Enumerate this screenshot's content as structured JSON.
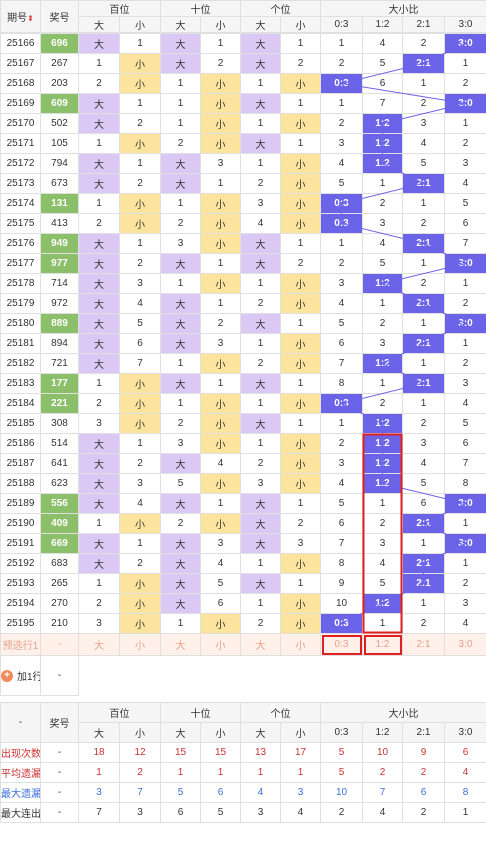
{
  "headers": {
    "period": "期号",
    "prize": "奖号",
    "hundreds": "百位",
    "tens": "十位",
    "units": "个位",
    "ratio": "大小比",
    "da": "大",
    "xiao": "小",
    "ratios": [
      "0:3",
      "1:2",
      "2:1",
      "3:0"
    ]
  },
  "rows": [
    {
      "p": "25166",
      "n": "696",
      "hl": true,
      "h": "大",
      "t": "大",
      "u": "大",
      "hv": "1",
      "tv": "1",
      "uv": "1",
      "r": [
        1,
        4,
        2,
        "3:0"
      ],
      "ri": 3
    },
    {
      "p": "25167",
      "n": "267",
      "hl": false,
      "h": "小",
      "t": "大",
      "u": "大",
      "hv": "1",
      "tv": "2",
      "uv": "2",
      "r": [
        2,
        5,
        "2:1",
        1
      ],
      "ri": 2
    },
    {
      "p": "25168",
      "n": "203",
      "hl": false,
      "h": "小",
      "t": "小",
      "u": "小",
      "hv": "2",
      "tv": "1",
      "uv": "1",
      "r": [
        "0:3",
        6,
        1,
        2
      ],
      "ri": 0
    },
    {
      "p": "25169",
      "n": "609",
      "hl": true,
      "h": "大",
      "t": "小",
      "u": "大",
      "hv": "1",
      "tv": "1",
      "uv": "1",
      "r": [
        1,
        7,
        2,
        "3:0"
      ],
      "ri": 3
    },
    {
      "p": "25170",
      "n": "502",
      "hl": false,
      "h": "大",
      "t": "小",
      "u": "小",
      "hv": "2",
      "tv": "1",
      "uv": "1",
      "r": [
        2,
        "1:2",
        3,
        1
      ],
      "ri": 1
    },
    {
      "p": "25171",
      "n": "105",
      "hl": false,
      "h": "小",
      "t": "小",
      "u": "大",
      "hv": "1",
      "tv": "2",
      "uv": "1",
      "r": [
        3,
        "1:2",
        4,
        2
      ],
      "ri": 1
    },
    {
      "p": "25172",
      "n": "794",
      "hl": false,
      "h": "大",
      "t": "大",
      "u": "小",
      "hv": "1",
      "tv": "3",
      "uv": "1",
      "r": [
        4,
        "1:2",
        5,
        3
      ],
      "ri": 1
    },
    {
      "p": "25173",
      "n": "673",
      "hl": false,
      "h": "大",
      "t": "大",
      "u": "小",
      "hv": "2",
      "tv": "1",
      "uv": "2",
      "r": [
        5,
        1,
        "2:1",
        4
      ],
      "ri": 2
    },
    {
      "p": "25174",
      "n": "131",
      "hl": true,
      "h": "小",
      "t": "小",
      "u": "小",
      "hv": "1",
      "tv": "1",
      "uv": "3",
      "r": [
        "0:3",
        2,
        1,
        5
      ],
      "ri": 0
    },
    {
      "p": "25175",
      "n": "413",
      "hl": false,
      "h": "小",
      "t": "小",
      "u": "小",
      "hv": "2",
      "tv": "2",
      "uv": "4",
      "r": [
        "0:3",
        3,
        2,
        6
      ],
      "ri": 0
    },
    {
      "p": "25176",
      "n": "949",
      "hl": true,
      "h": "大",
      "t": "小",
      "u": "大",
      "hv": "1",
      "tv": "3",
      "uv": "1",
      "r": [
        1,
        4,
        "2:1",
        7
      ],
      "ri": 2
    },
    {
      "p": "25177",
      "n": "977",
      "hl": true,
      "h": "大",
      "t": "大",
      "u": "大",
      "hv": "2",
      "tv": "1",
      "uv": "2",
      "r": [
        2,
        5,
        1,
        "3:0"
      ],
      "ri": 3
    },
    {
      "p": "25178",
      "n": "714",
      "hl": false,
      "h": "大",
      "t": "小",
      "u": "小",
      "hv": "3",
      "tv": "1",
      "uv": "1",
      "r": [
        3,
        "1:2",
        2,
        1
      ],
      "ri": 1
    },
    {
      "p": "25179",
      "n": "972",
      "hl": false,
      "h": "大",
      "t": "大",
      "u": "小",
      "hv": "4",
      "tv": "1",
      "uv": "2",
      "r": [
        4,
        1,
        "2:1",
        2
      ],
      "ri": 2
    },
    {
      "p": "25180",
      "n": "889",
      "hl": true,
      "h": "大",
      "t": "大",
      "u": "大",
      "hv": "5",
      "tv": "2",
      "uv": "1",
      "r": [
        5,
        2,
        1,
        "3:0"
      ],
      "ri": 3
    },
    {
      "p": "25181",
      "n": "894",
      "hl": false,
      "h": "大",
      "t": "大",
      "u": "小",
      "hv": "6",
      "tv": "3",
      "uv": "1",
      "r": [
        6,
        3,
        "2:1",
        1
      ],
      "ri": 2
    },
    {
      "p": "25182",
      "n": "721",
      "hl": false,
      "h": "大",
      "t": "小",
      "u": "小",
      "hv": "7",
      "tv": "1",
      "uv": "2",
      "r": [
        7,
        "1:2",
        1,
        2
      ],
      "ri": 1
    },
    {
      "p": "25183",
      "n": "177",
      "hl": true,
      "h": "小",
      "t": "大",
      "u": "大",
      "hv": "1",
      "tv": "1",
      "uv": "1",
      "r": [
        8,
        1,
        "2:1",
        3
      ],
      "ri": 2
    },
    {
      "p": "25184",
      "n": "221",
      "hl": true,
      "h": "小",
      "t": "小",
      "u": "小",
      "hv": "2",
      "tv": "1",
      "uv": "1",
      "r": [
        "0:3",
        2,
        1,
        4
      ],
      "ri": 0
    },
    {
      "p": "25185",
      "n": "308",
      "hl": false,
      "h": "小",
      "t": "小",
      "u": "大",
      "hv": "3",
      "tv": "2",
      "uv": "1",
      "r": [
        1,
        "1:2",
        2,
        5
      ],
      "ri": 1
    },
    {
      "p": "25186",
      "n": "514",
      "hl": false,
      "h": "大",
      "t": "小",
      "u": "小",
      "hv": "1",
      "tv": "3",
      "uv": "1",
      "r": [
        2,
        "1:2",
        3,
        6
      ],
      "ri": 1
    },
    {
      "p": "25187",
      "n": "641",
      "hl": false,
      "h": "大",
      "t": "大",
      "u": "小",
      "hv": "2",
      "tv": "4",
      "uv": "2",
      "r": [
        3,
        "1:2",
        4,
        7
      ],
      "ri": 1
    },
    {
      "p": "25188",
      "n": "623",
      "hl": false,
      "h": "大",
      "t": "小",
      "u": "小",
      "hv": "3",
      "tv": "5",
      "uv": "3",
      "r": [
        4,
        "1:2",
        5,
        8
      ],
      "ri": 1
    },
    {
      "p": "25189",
      "n": "556",
      "hl": true,
      "h": "大",
      "t": "大",
      "u": "大",
      "hv": "4",
      "tv": "1",
      "uv": "1",
      "r": [
        5,
        1,
        6,
        "3:0"
      ],
      "ri": 3
    },
    {
      "p": "25190",
      "n": "409",
      "hl": true,
      "h": "小",
      "t": "小",
      "u": "大",
      "hv": "1",
      "tv": "2",
      "uv": "2",
      "r": [
        6,
        2,
        "2:1",
        1
      ],
      "ri": 2
    },
    {
      "p": "25191",
      "n": "669",
      "hl": true,
      "h": "大",
      "t": "大",
      "u": "大",
      "hv": "1",
      "tv": "3",
      "uv": "3",
      "r": [
        7,
        3,
        1,
        "3:0"
      ],
      "ri": 3
    },
    {
      "p": "25192",
      "n": "683",
      "hl": false,
      "h": "大",
      "t": "大",
      "u": "小",
      "hv": "2",
      "tv": "4",
      "uv": "1",
      "r": [
        8,
        4,
        "2:1",
        1
      ],
      "ri": 2
    },
    {
      "p": "25193",
      "n": "265",
      "hl": false,
      "h": "小",
      "t": "大",
      "u": "大",
      "hv": "1",
      "tv": "5",
      "uv": "1",
      "r": [
        9,
        5,
        "2:1",
        2
      ],
      "ri": 2
    },
    {
      "p": "25194",
      "n": "270",
      "hl": false,
      "h": "小",
      "t": "大",
      "u": "小",
      "hv": "2",
      "tv": "6",
      "uv": "1",
      "r": [
        10,
        "1:2",
        1,
        3
      ],
      "ri": 1
    },
    {
      "p": "25195",
      "n": "210",
      "hl": false,
      "h": "小",
      "t": "小",
      "u": "小",
      "hv": "3",
      "tv": "1",
      "uv": "2",
      "r": [
        "0:3",
        1,
        2,
        4
      ],
      "ri": 0
    }
  ],
  "preselect": {
    "label": "预选行1",
    "dash": "-",
    "cells": [
      "大",
      "小",
      "大",
      "小",
      "大",
      "小",
      "0:3",
      "1:2",
      "2:1",
      "3:0"
    ]
  },
  "add": {
    "label": "加1行",
    "dash": "-"
  },
  "stats": {
    "dash": "-",
    "labels": [
      "出现次数",
      "平均遗漏",
      "最大遗漏",
      "最大连出"
    ],
    "values": [
      [
        "18",
        "12",
        "15",
        "15",
        "13",
        "17",
        "5",
        "10",
        "9",
        "6"
      ],
      [
        "1",
        "2",
        "1",
        "1",
        "1",
        "1",
        "5",
        "2",
        "2",
        "4"
      ],
      [
        "3",
        "7",
        "5",
        "6",
        "4",
        "3",
        "10",
        "7",
        "6",
        "8"
      ],
      [
        "7",
        "3",
        "6",
        "5",
        "3",
        "4",
        "2",
        "4",
        "2",
        "1"
      ]
    ]
  },
  "colors": {
    "da": "#dcc8f5",
    "xiao": "#fce49f",
    "ratio": "#6b63e8",
    "prize_hl": "#8cbf6a",
    "red_box": "#e02020",
    "line": "#6b63e8"
  }
}
